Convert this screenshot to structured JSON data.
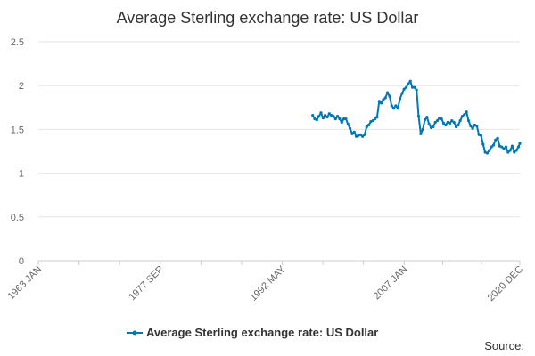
{
  "chart_data": {
    "type": "line",
    "title": "Average Sterling exchange rate: US Dollar",
    "xlabel": "",
    "ylabel": "",
    "x_tick_labels": [
      "1963 JAN",
      "1977 SEP",
      "1992 MAY",
      "2007 JAN",
      "2020 DEC"
    ],
    "x_tick_years": [
      1963.0,
      1977.67,
      1992.33,
      2007.0,
      2020.92
    ],
    "y_ticks": [
      0,
      0.5,
      1,
      1.5,
      2,
      2.5
    ],
    "ylim": [
      0,
      2.5
    ],
    "xlim": [
      1963.0,
      2020.92
    ],
    "grid": true,
    "legend_position": "bottom",
    "series": [
      {
        "name": "Average Sterling exchange rate: US Dollar",
        "color": "#0077b6",
        "x": [
          1996.0,
          1996.25,
          1996.5,
          1996.75,
          1997.0,
          1997.25,
          1997.5,
          1997.75,
          1998.0,
          1998.25,
          1998.5,
          1998.75,
          1999.0,
          1999.25,
          1999.5,
          1999.75,
          2000.0,
          2000.25,
          2000.5,
          2000.75,
          2001.0,
          2001.25,
          2001.5,
          2001.75,
          2002.0,
          2002.25,
          2002.5,
          2002.75,
          2003.0,
          2003.25,
          2003.5,
          2003.75,
          2004.0,
          2004.25,
          2004.5,
          2004.75,
          2005.0,
          2005.25,
          2005.5,
          2005.75,
          2006.0,
          2006.25,
          2006.5,
          2006.75,
          2007.0,
          2007.25,
          2007.5,
          2007.75,
          2008.0,
          2008.25,
          2008.5,
          2008.75,
          2009.0,
          2009.25,
          2009.5,
          2009.75,
          2010.0,
          2010.25,
          2010.5,
          2010.75,
          2011.0,
          2011.25,
          2011.5,
          2011.75,
          2012.0,
          2012.25,
          2012.5,
          2012.75,
          2013.0,
          2013.25,
          2013.5,
          2013.75,
          2014.0,
          2014.25,
          2014.5,
          2014.75,
          2015.0,
          2015.25,
          2015.5,
          2015.75,
          2016.0,
          2016.25,
          2016.5,
          2016.75,
          2017.0,
          2017.25,
          2017.5,
          2017.75,
          2018.0,
          2018.25,
          2018.5,
          2018.75,
          2019.0,
          2019.25,
          2019.5,
          2019.75,
          2020.0,
          2020.25,
          2020.5,
          2020.75,
          2020.92
        ],
        "values": [
          1.66,
          1.62,
          1.61,
          1.65,
          1.69,
          1.63,
          1.66,
          1.64,
          1.68,
          1.66,
          1.65,
          1.62,
          1.65,
          1.62,
          1.58,
          1.62,
          1.62,
          1.56,
          1.51,
          1.45,
          1.47,
          1.42,
          1.43,
          1.44,
          1.42,
          1.44,
          1.53,
          1.55,
          1.59,
          1.6,
          1.62,
          1.64,
          1.82,
          1.8,
          1.84,
          1.86,
          1.92,
          1.88,
          1.77,
          1.74,
          1.77,
          1.74,
          1.85,
          1.91,
          1.96,
          1.98,
          2.02,
          2.05,
          1.98,
          1.98,
          1.95,
          1.65,
          1.45,
          1.5,
          1.61,
          1.64,
          1.56,
          1.52,
          1.53,
          1.58,
          1.6,
          1.63,
          1.62,
          1.57,
          1.55,
          1.58,
          1.57,
          1.6,
          1.58,
          1.53,
          1.55,
          1.6,
          1.65,
          1.67,
          1.7,
          1.6,
          1.54,
          1.51,
          1.55,
          1.54,
          1.44,
          1.43,
          1.33,
          1.24,
          1.23,
          1.26,
          1.3,
          1.32,
          1.38,
          1.4,
          1.31,
          1.3,
          1.28,
          1.3,
          1.24,
          1.26,
          1.31,
          1.24,
          1.26,
          1.3,
          1.34
        ]
      }
    ]
  },
  "legend": {
    "label": "Average Sterling exchange rate: US Dollar"
  },
  "source_label": "Source:"
}
